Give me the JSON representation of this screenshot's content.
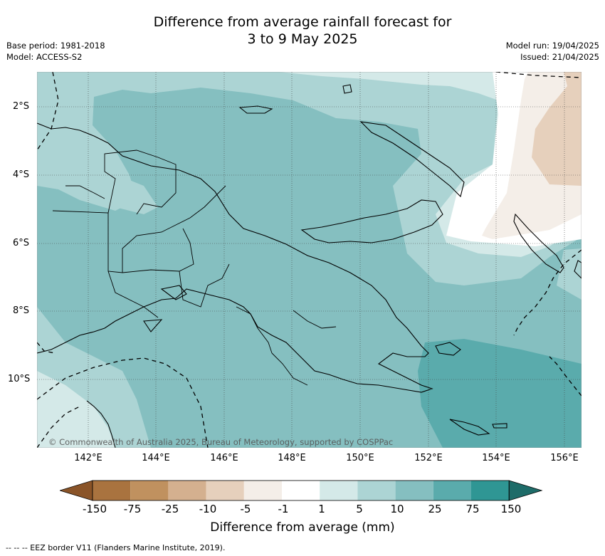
{
  "title_line1": "Difference from average rainfall forecast for",
  "title_line2": "3 to 9 May 2025",
  "meta_left": [
    "Base period: 1981-2018",
    "Model: ACCESS-S2"
  ],
  "meta_right": [
    "Model run: 19/04/2025",
    "Issued: 21/04/2025"
  ],
  "copyright": "© Commonwealth of Australia 2025, Bureau of Meteorology, supported by COSPPac",
  "x_ticks": [
    "142°E",
    "144°E",
    "146°E",
    "148°E",
    "150°E",
    "152°E",
    "154°E",
    "156°E"
  ],
  "y_ticks": [
    "2°S",
    "4°S",
    "6°S",
    "8°S",
    "10°S"
  ],
  "colorbar": {
    "label": "Difference from average (mm)",
    "ticks": [
      "-150",
      "-75",
      "-25",
      "-10",
      "-5",
      "-1",
      "1",
      "5",
      "10",
      "25",
      "75",
      "150"
    ],
    "colors": [
      "#8a5428",
      "#a9733f",
      "#c0915f",
      "#d4b08f",
      "#e6d0bc",
      "#f4eee8",
      "#ffffff",
      "#d4e9e8",
      "#acd4d4",
      "#85bfc0",
      "#5aabac",
      "#2f9694",
      "#1e6c69"
    ]
  },
  "footer": "--  --  -- EEZ border V11 (Flanders Marine Institute, 2019)."
}
